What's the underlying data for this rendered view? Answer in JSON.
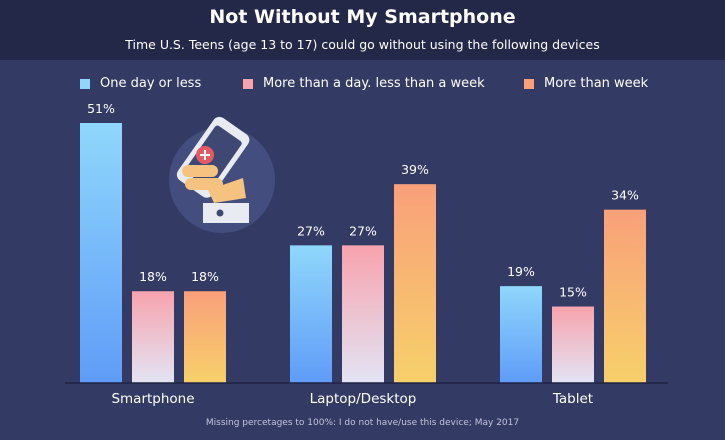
{
  "header": {
    "title": "Not Without My Smartphone",
    "subtitle": "Time U.S. Teens (age 13 to 17) could go without using the following devices"
  },
  "footer": {
    "note": "Missing percetages to 100%: I do not have/use this device; May 2017"
  },
  "illustration": {
    "icon": "hand-holding-phone-icon"
  },
  "colors": {
    "background": "#333a63",
    "header": "#232748",
    "series": [
      {
        "top": "#8fd7fb",
        "bottom": "#5f9cf8"
      },
      {
        "top": "#f7a3ad",
        "bottom": "#e3e4f4"
      },
      {
        "top": "#f9a07a",
        "bottom": "#f7d06a"
      }
    ]
  },
  "chart_data": {
    "type": "bar",
    "categories": [
      "Smartphone",
      "Laptop/Desktop",
      "Tablet"
    ],
    "series": [
      {
        "name": "One day or less",
        "values": [
          51,
          27,
          19
        ]
      },
      {
        "name": "More than a day. less than a week",
        "values": [
          18,
          27,
          15
        ]
      },
      {
        "name": "More than week",
        "values": [
          18,
          39,
          34
        ]
      }
    ],
    "value_suffix": "%",
    "ylim": [
      0,
      51
    ],
    "grid": false,
    "legend_position": "top-left"
  }
}
